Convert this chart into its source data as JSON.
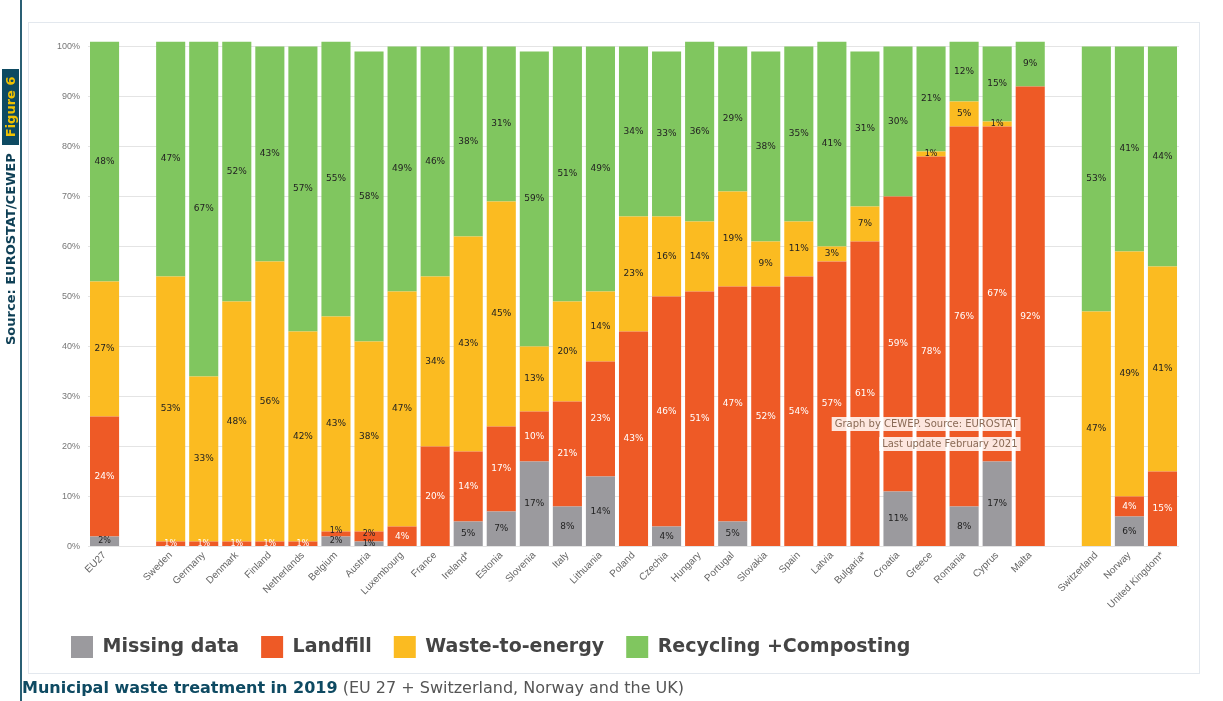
{
  "chart_data": {
    "type": "bar",
    "stacked": true,
    "title": "Municipal waste treatment in 2019",
    "subtitle": "(EU 27 + Switzerland, Norway and the UK)",
    "categories": [
      "EU27",
      null,
      "Sweden",
      "Germany",
      "Denmark",
      "Finland",
      "Netherlands",
      "Belgium",
      "Austria",
      "Luxembourg",
      "France",
      "Ireland*",
      "Estonia",
      "Slovenia",
      "Italy",
      "Lithuania",
      "Poland",
      "Czechia",
      "Hungary",
      "Portugal",
      "Slovakia",
      "Spain",
      "Latvia",
      "Bulgaria*",
      "Croatia",
      "Greece",
      "Romania",
      "Cyprus",
      "Malta",
      null,
      "Switzerland",
      "Norway",
      "United Kingdom*"
    ],
    "series": [
      {
        "name": "Missing data",
        "color": "#9b9a9e",
        "values": [
          2,
          null,
          null,
          null,
          null,
          null,
          null,
          2,
          1,
          null,
          null,
          5,
          7,
          17,
          8,
          14,
          null,
          4,
          null,
          5,
          null,
          null,
          null,
          null,
          11,
          null,
          8,
          17,
          null,
          null,
          null,
          6,
          null
        ],
        "value_labels": [
          "2%",
          null,
          null,
          null,
          null,
          null,
          null,
          "2%",
          "1%",
          null,
          null,
          "5%",
          "7%",
          "17%",
          "8%",
          "14%",
          null,
          "4%",
          null,
          "5%",
          null,
          null,
          null,
          null,
          "11%",
          null,
          "8%",
          "17%",
          null,
          null,
          null,
          "6%",
          null
        ]
      },
      {
        "name": "Landfill",
        "color": "#ee5a26",
        "values": [
          24,
          null,
          1,
          1,
          1,
          1,
          1,
          1,
          2,
          4,
          20,
          14,
          17,
          10,
          21,
          23,
          43,
          46,
          51,
          47,
          52,
          54,
          57,
          61,
          59,
          78,
          76,
          67,
          92,
          null,
          null,
          4,
          15
        ],
        "value_labels": [
          "24%",
          null,
          "1%",
          "1%",
          "1%",
          "1%",
          "1%",
          "1%",
          "2%",
          "4%",
          "20%",
          "14%",
          "17%",
          "10%",
          "21%",
          "23%",
          "43%",
          "46%",
          "51%",
          "47%",
          "52%",
          "54%",
          "57%",
          "61%",
          "59%",
          "78%",
          "76%",
          "67%",
          "92%",
          null,
          null,
          "4%",
          "15%"
        ]
      },
      {
        "name": "Waste-to-energy",
        "color": "#fbbb21",
        "values": [
          27,
          null,
          53,
          33,
          48,
          56,
          42,
          43,
          38,
          47,
          34,
          43,
          45,
          13,
          20,
          14,
          23,
          16,
          14,
          19,
          9,
          11,
          3,
          7,
          null,
          1,
          5,
          1,
          null,
          null,
          47,
          49,
          41
        ],
        "value_labels": [
          "27%",
          null,
          "53%",
          "33%",
          "48%",
          "56%",
          "42%",
          "43%",
          "38%",
          "47%",
          "34%",
          "43%",
          "45%",
          "13%",
          "20%",
          "14%",
          "23%",
          "16%",
          "14%",
          "19%",
          "9%",
          "11%",
          "3%",
          "7%",
          null,
          "1%",
          "5%",
          "1%",
          null,
          null,
          "47%",
          "49%",
          "41%"
        ]
      },
      {
        "name": "Recycling +Composting",
        "color": "#80c65f",
        "values": [
          48,
          null,
          47,
          67,
          52,
          43,
          57,
          55,
          58,
          49,
          46,
          38,
          31,
          59,
          51,
          49,
          34,
          33,
          36,
          29,
          38,
          35,
          41,
          31,
          30,
          21,
          12,
          15,
          9,
          null,
          53,
          41,
          44
        ],
        "value_labels": [
          "48%",
          null,
          "47%",
          "67%",
          "52%",
          "43%",
          "57%",
          "55%",
          "58%",
          "49%",
          "46%",
          "38%",
          "31%",
          "59%",
          "51%",
          "49%",
          "34%",
          "33%",
          "36%",
          "29%",
          "38%",
          "35%",
          "41%",
          "31%",
          "30%",
          "21%",
          "12%",
          "15%",
          "9%",
          null,
          "53%",
          "41%",
          "44%"
        ]
      }
    ],
    "ylim": [
      0,
      101
    ],
    "yticks": [
      {
        "value": 0,
        "label": "0%"
      },
      {
        "value": 10,
        "label": "10%"
      },
      {
        "value": 20,
        "label": "20%"
      },
      {
        "value": 30,
        "label": "30%"
      },
      {
        "value": 40,
        "label": "40%"
      },
      {
        "value": 50,
        "label": "50%"
      },
      {
        "value": 60,
        "label": "60%"
      },
      {
        "value": 70,
        "label": "70%"
      },
      {
        "value": 80,
        "label": "80%"
      },
      {
        "value": 90,
        "label": "90%"
      },
      {
        "value": 100,
        "label": "100%"
      }
    ],
    "grid": "y",
    "legend": "bottom",
    "annotations": [
      "Graph by CEWEP. Source: EUROSTAT",
      "Last update February 2021",
      "Source: EUROSTAT/CEWEP",
      "Figure 6"
    ]
  }
}
